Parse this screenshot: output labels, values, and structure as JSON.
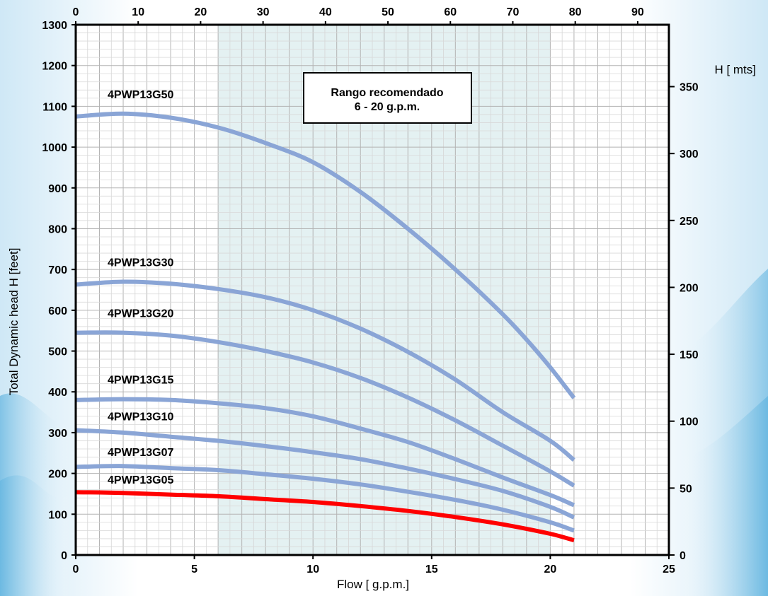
{
  "chart_data": {
    "type": "line",
    "xlabel": "Flow [ g.p.m.]",
    "ylabel": "Total Dynamic head H [feet]",
    "ylabel_right": "H [ mts]",
    "xlim": [
      0,
      25
    ],
    "ylim": [
      0,
      1300
    ],
    "x_ticks": [
      0,
      5,
      10,
      15,
      20,
      25
    ],
    "y_ticks": [
      0,
      100,
      200,
      300,
      400,
      500,
      600,
      700,
      800,
      900,
      1000,
      1100,
      1200,
      1300
    ],
    "x2_lim": [
      0,
      95
    ],
    "x2_ticks": [
      0,
      10,
      20,
      30,
      40,
      50,
      60,
      70,
      80,
      90
    ],
    "y2_lim": [
      0,
      396.24
    ],
    "y2_ticks": [
      0,
      50,
      100,
      150,
      200,
      250,
      300,
      350
    ],
    "grid": true,
    "recommended_range": {
      "x_from": 6,
      "x_to": 20,
      "title": "Rango recomendado",
      "subtitle": "6 - 20 g.p.m."
    },
    "series": [
      {
        "name": "4PWP13G50",
        "color": "#8aa5d6",
        "x": [
          0,
          2,
          4,
          6,
          8,
          10,
          12,
          14,
          16,
          18,
          19,
          20,
          21
        ],
        "y": [
          1075,
          1082,
          1072,
          1048,
          1010,
          963,
          890,
          800,
          700,
          590,
          528,
          460,
          385
        ]
      },
      {
        "name": "4PWP13G30",
        "color": "#8aa5d6",
        "x": [
          0,
          2,
          4,
          6,
          8,
          10,
          12,
          14,
          16,
          18,
          20,
          21
        ],
        "y": [
          663,
          670,
          665,
          652,
          632,
          600,
          555,
          498,
          430,
          350,
          280,
          233
        ]
      },
      {
        "name": "4PWP13G20",
        "color": "#8aa5d6",
        "x": [
          0,
          2,
          4,
          6,
          8,
          10,
          12,
          14,
          16,
          18,
          20,
          21
        ],
        "y": [
          545,
          545,
          538,
          522,
          500,
          472,
          434,
          386,
          330,
          268,
          205,
          170
        ]
      },
      {
        "name": "4PWP13G15",
        "color": "#8aa5d6",
        "x": [
          0,
          2,
          4,
          6,
          8,
          10,
          12,
          14,
          16,
          18,
          20,
          21
        ],
        "y": [
          380,
          382,
          380,
          372,
          360,
          340,
          310,
          277,
          235,
          190,
          147,
          122
        ]
      },
      {
        "name": "4PWP13G10",
        "color": "#8aa5d6",
        "x": [
          0,
          2,
          4,
          6,
          8,
          10,
          12,
          14,
          16,
          18,
          20,
          21
        ],
        "y": [
          306,
          300,
          290,
          280,
          267,
          252,
          235,
          212,
          186,
          157,
          118,
          92
        ]
      },
      {
        "name": "4PWP13G07",
        "color": "#8aa5d6",
        "x": [
          0,
          2,
          4,
          6,
          8,
          10,
          12,
          14,
          16,
          18,
          20,
          21
        ],
        "y": [
          216,
          218,
          213,
          208,
          198,
          187,
          173,
          155,
          135,
          111,
          80,
          60
        ]
      },
      {
        "name": "4PWP13G05",
        "color": "#ff0000",
        "x": [
          0,
          2,
          4,
          6,
          8,
          10,
          12,
          14,
          16,
          18,
          20,
          21
        ],
        "y": [
          154,
          152,
          148,
          144,
          137,
          130,
          120,
          108,
          93,
          75,
          52,
          36
        ]
      }
    ]
  }
}
